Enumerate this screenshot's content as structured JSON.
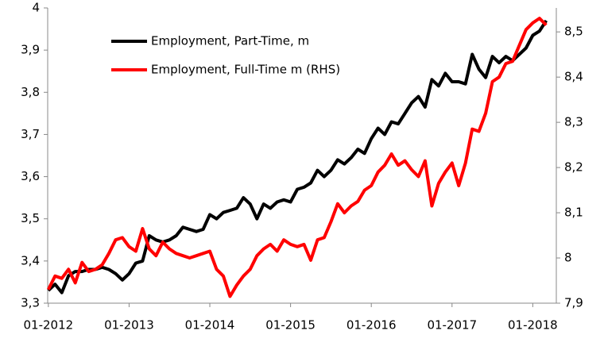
{
  "chart_data": {
    "type": "line",
    "x": [
      "2012-01",
      "2012-02",
      "2012-03",
      "2012-04",
      "2012-05",
      "2012-06",
      "2012-07",
      "2012-08",
      "2012-09",
      "2012-10",
      "2012-11",
      "2012-12",
      "2013-01",
      "2013-02",
      "2013-03",
      "2013-04",
      "2013-05",
      "2013-06",
      "2013-07",
      "2013-08",
      "2013-09",
      "2013-10",
      "2013-11",
      "2013-12",
      "2014-01",
      "2014-02",
      "2014-03",
      "2014-04",
      "2014-05",
      "2014-06",
      "2014-07",
      "2014-08",
      "2014-09",
      "2014-10",
      "2014-11",
      "2014-12",
      "2015-01",
      "2015-02",
      "2015-03",
      "2015-04",
      "2015-05",
      "2015-06",
      "2015-07",
      "2015-08",
      "2015-09",
      "2015-10",
      "2015-11",
      "2015-12",
      "2016-01",
      "2016-02",
      "2016-03",
      "2016-04",
      "2016-05",
      "2016-06",
      "2016-07",
      "2016-08",
      "2016-09",
      "2016-10",
      "2016-11",
      "2016-12",
      "2017-01",
      "2017-02",
      "2017-03",
      "2017-04",
      "2017-05",
      "2017-06",
      "2017-07",
      "2017-08",
      "2017-09",
      "2017-10",
      "2017-11",
      "2017-12",
      "2018-01",
      "2018-02",
      "2018-03"
    ],
    "series": [
      {
        "name": "Employment, Part-Time, m",
        "color": "#000000",
        "axis": "y",
        "values": [
          3.33,
          3.345,
          3.325,
          3.365,
          3.375,
          3.375,
          3.38,
          3.38,
          3.385,
          3.38,
          3.37,
          3.355,
          3.37,
          3.395,
          3.4,
          3.46,
          3.45,
          3.445,
          3.45,
          3.46,
          3.48,
          3.475,
          3.47,
          3.475,
          3.51,
          3.5,
          3.515,
          3.52,
          3.525,
          3.55,
          3.535,
          3.5,
          3.535,
          3.525,
          3.54,
          3.545,
          3.54,
          3.57,
          3.575,
          3.585,
          3.615,
          3.6,
          3.615,
          3.64,
          3.63,
          3.645,
          3.665,
          3.655,
          3.69,
          3.715,
          3.7,
          3.73,
          3.725,
          3.75,
          3.775,
          3.79,
          3.765,
          3.83,
          3.815,
          3.845,
          3.825,
          3.825,
          3.82,
          3.89,
          3.855,
          3.835,
          3.885,
          3.87,
          3.885,
          3.875,
          3.89,
          3.905,
          3.935,
          3.945,
          3.97
        ]
      },
      {
        "name": "Employment, Full-Time m (RHS)",
        "color": "#ff0000",
        "axis": "y2",
        "values": [
          7.93,
          7.96,
          7.955,
          7.975,
          7.945,
          7.99,
          7.97,
          7.975,
          7.985,
          8.01,
          8.04,
          8.045,
          8.025,
          8.015,
          8.065,
          8.02,
          8.005,
          8.035,
          8.02,
          8.01,
          8.005,
          8,
          8.005,
          8.01,
          8.015,
          7.975,
          7.96,
          7.915,
          7.94,
          7.96,
          7.975,
          8.005,
          8.02,
          8.03,
          8.015,
          8.04,
          8.03,
          8.025,
          8.03,
          7.995,
          8.04,
          8.045,
          8.08,
          8.12,
          8.1,
          8.115,
          8.125,
          8.15,
          8.16,
          8.19,
          8.205,
          8.23,
          8.205,
          8.215,
          8.195,
          8.18,
          8.215,
          8.115,
          8.165,
          8.19,
          8.21,
          8.16,
          8.21,
          8.285,
          8.28,
          8.32,
          8.39,
          8.4,
          8.43,
          8.435,
          8.47,
          8.505,
          8.52,
          8.53,
          8.515
        ]
      }
    ],
    "ylim": [
      3.3,
      4
    ],
    "yticks": [
      {
        "value": 3.3,
        "label": "3,3"
      },
      {
        "value": 3.4,
        "label": "3,4"
      },
      {
        "value": 3.5,
        "label": "3,5"
      },
      {
        "value": 3.6,
        "label": "3,6"
      },
      {
        "value": 3.7,
        "label": "3,7"
      },
      {
        "value": 3.8,
        "label": "3,8"
      },
      {
        "value": 3.9,
        "label": "3,9"
      },
      4
    ],
    "y2lim": [
      7.9,
      8.553
    ],
    "y2ticks": [
      {
        "value": 7.9,
        "label": "7,9"
      },
      8,
      {
        "value": 8.1,
        "label": "8,1"
      },
      {
        "value": 8.2,
        "label": "8,2"
      },
      {
        "value": 8.3,
        "label": "8,3"
      },
      {
        "value": 8.4,
        "label": "8,4"
      },
      {
        "value": 8.5,
        "label": "8,5"
      }
    ],
    "xticks": [
      {
        "value": "2012-01",
        "label": "01-2012"
      },
      {
        "value": "2013-01",
        "label": "01-2013"
      },
      {
        "value": "2014-01",
        "label": "01-2014"
      },
      {
        "value": "2015-01",
        "label": "01-2015"
      },
      {
        "value": "2016-01",
        "label": "01-2016"
      },
      {
        "value": "2017-01",
        "label": "01-2017"
      },
      {
        "value": "2018-01",
        "label": "01-2018"
      }
    ],
    "legend": "upper left",
    "grid": false
  }
}
